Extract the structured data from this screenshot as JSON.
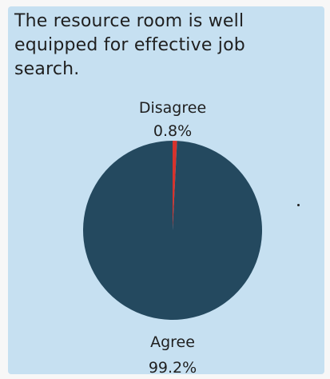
{
  "title": "The resource room is well equipped for effective job search.",
  "colors": {
    "card_background": "#c6e0f1",
    "agree": "#24495f",
    "disagree": "#d8322c"
  },
  "chart_data": {
    "type": "pie",
    "title": "The resource room is well equipped for effective job search.",
    "slices": [
      {
        "label": "Disagree",
        "value": 0.8,
        "value_label": "0.8%",
        "color": "#d8322c"
      },
      {
        "label": "Agree",
        "value": 99.2,
        "value_label": "99.2%",
        "color": "#24495f"
      }
    ],
    "legend": "none",
    "labels_placement": "outside-top-bottom"
  }
}
